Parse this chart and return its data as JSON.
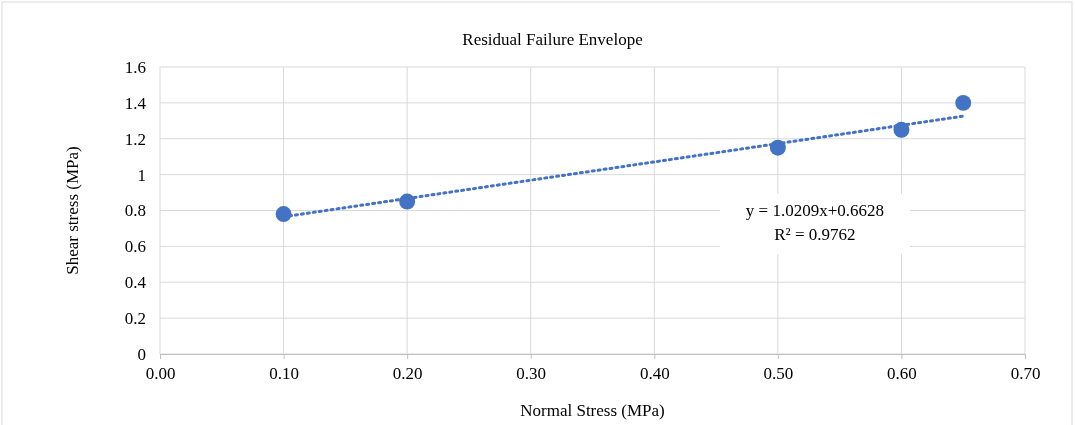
{
  "chart_data": {
    "type": "scatter",
    "title": "Residual Failure Envelope",
    "xlabel": "Normal Stress (MPa)",
    "ylabel": "Shear stress (MPa)",
    "xlim": [
      0,
      0.7
    ],
    "xticks": [
      {
        "value": 0,
        "label": "0.00"
      },
      {
        "value": 0.1,
        "label": "0.10"
      },
      {
        "value": 0.2,
        "label": "0.20"
      },
      {
        "value": 0.3,
        "label": "0.30"
      },
      {
        "value": 0.4,
        "label": "0.40"
      },
      {
        "value": 0.5,
        "label": "0.50"
      },
      {
        "value": 0.6,
        "label": "0.60"
      },
      {
        "value": 0.7,
        "label": "0.70"
      }
    ],
    "ylim": [
      0,
      1.6
    ],
    "yticks": [
      0,
      0.2,
      0.4,
      0.6,
      0.8,
      1,
      1.2,
      1.4,
      1.6
    ],
    "grid": true,
    "series": [
      {
        "type": "scatter",
        "color": "#4472c4",
        "marker": "circle",
        "x": [
          0.1,
          0.2,
          0.5,
          0.6,
          0.65
        ],
        "values": [
          0.78,
          0.85,
          1.15,
          1.25,
          1.4
        ]
      },
      {
        "type": "line",
        "color": "#4472c4",
        "line_style": "dotted",
        "x": [
          0.1,
          0.65
        ],
        "values": [
          0.765,
          1.326
        ]
      }
    ],
    "annotations": [
      "y = 1.0209x+0.6628",
      "R² = 0.9762"
    ]
  }
}
